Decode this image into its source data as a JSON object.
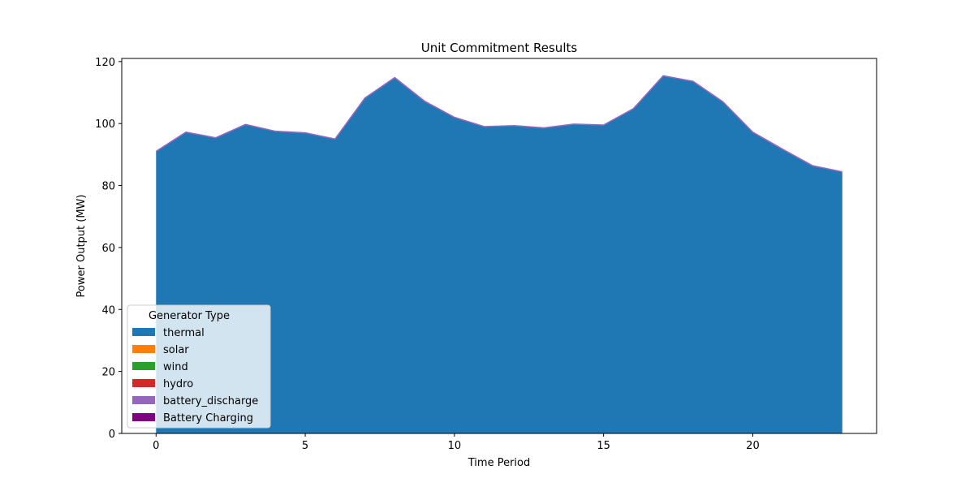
{
  "chart_data": {
    "type": "area",
    "stacked": true,
    "title": "Unit Commitment Results",
    "xlabel": "Time Period",
    "ylabel": "Power Output (MW)",
    "xlim": [
      -1.15,
      24.15
    ],
    "ylim": [
      0,
      121
    ],
    "xticks": [
      0,
      5,
      10,
      15,
      20
    ],
    "yticks": [
      0,
      20,
      40,
      60,
      80,
      100,
      120
    ],
    "grid": false,
    "x": [
      0,
      1,
      2,
      3,
      4,
      5,
      6,
      7,
      8,
      9,
      10,
      11,
      12,
      13,
      14,
      15,
      16,
      17,
      18,
      19,
      20,
      21,
      22,
      23
    ],
    "series": [
      {
        "name": "thermal",
        "color": "#1f77b4",
        "values": [
          91.0,
          97.2,
          95.4,
          99.7,
          97.5,
          97.0,
          95.0,
          108.2,
          114.8,
          107.2,
          102.0,
          99.0,
          99.3,
          98.6,
          99.8,
          99.5,
          104.8,
          115.4,
          113.6,
          107.0,
          97.2,
          91.7,
          86.4,
          84.4
        ]
      },
      {
        "name": "solar",
        "color": "#ff7f0e",
        "values": [
          0,
          0,
          0,
          0,
          0,
          0,
          0,
          0,
          0,
          0,
          0,
          0,
          0,
          0,
          0,
          0,
          0,
          0,
          0,
          0,
          0,
          0,
          0,
          0
        ]
      },
      {
        "name": "wind",
        "color": "#2ca02c",
        "values": [
          0,
          0,
          0,
          0,
          0,
          0,
          0,
          0,
          0,
          0,
          0,
          0,
          0,
          0,
          0,
          0,
          0,
          0,
          0,
          0,
          0,
          0,
          0,
          0
        ]
      },
      {
        "name": "hydro",
        "color": "#d62728",
        "values": [
          0,
          0,
          0,
          0,
          0,
          0,
          0,
          0,
          0,
          0,
          0,
          0,
          0,
          0,
          0,
          0,
          0,
          0,
          0,
          0,
          0,
          0,
          0,
          0
        ]
      },
      {
        "name": "battery_discharge",
        "color": "#9467bd",
        "values": [
          0,
          0,
          0,
          0,
          0,
          0,
          0,
          0,
          0,
          0,
          0,
          0,
          0,
          0,
          0,
          0,
          0,
          0,
          0,
          0,
          0,
          0,
          0,
          0
        ]
      },
      {
        "name": "Battery Charging",
        "color": "#800080",
        "values": [
          0,
          0,
          0,
          0,
          0,
          0,
          0,
          0,
          0,
          0,
          0,
          0,
          0,
          0,
          0,
          0,
          0,
          0,
          0,
          0,
          0,
          0,
          0,
          0
        ]
      }
    ],
    "legend": {
      "title": "Generator Type",
      "placement": "lower-left"
    }
  }
}
